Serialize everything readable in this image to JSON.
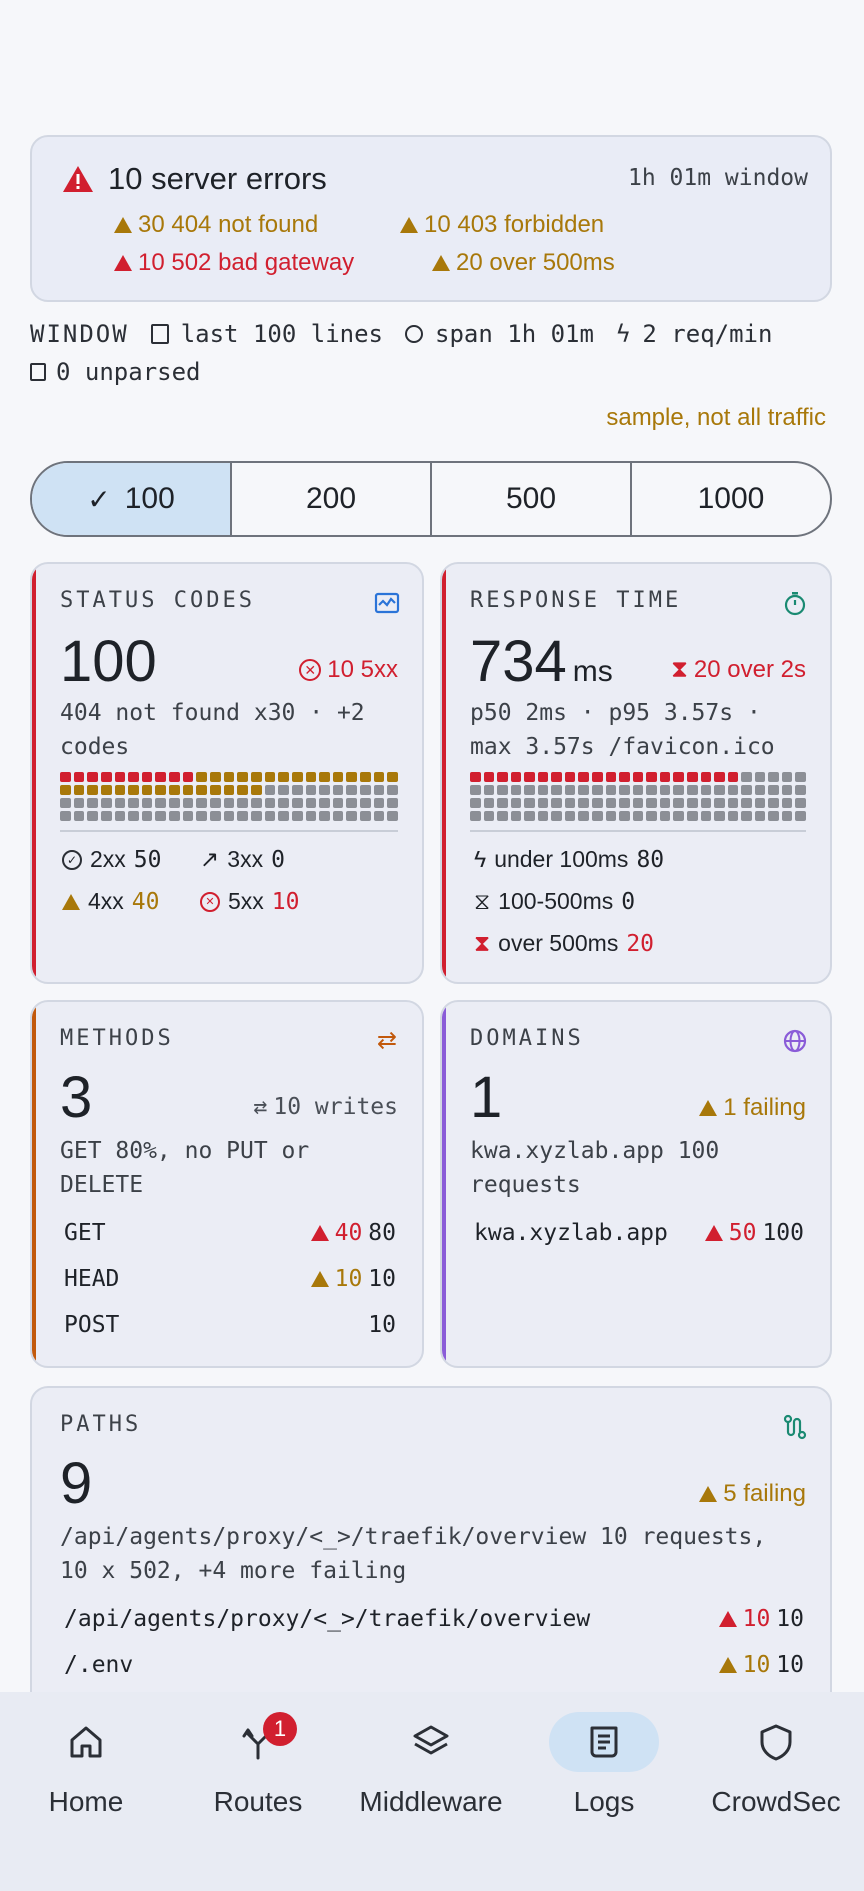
{
  "alert": {
    "title": "10 server errors",
    "window": "1h 01m window",
    "items": [
      {
        "text": "30 404 not found",
        "color": "#a8780a"
      },
      {
        "text": "10 403 forbidden",
        "color": "#a8780a"
      },
      {
        "text": "10 502 bad gateway",
        "color": "#d11f2f"
      },
      {
        "text": "20 over 500ms",
        "color": "#a8780a"
      }
    ]
  },
  "window_info": {
    "label": "WINDOW",
    "lines": "last 100 lines",
    "span": "span 1h 01m",
    "rate": "2 req/min",
    "unparsed": "0 unparsed",
    "sample_note": "sample, not all traffic"
  },
  "segments": {
    "options": [
      "100",
      "200",
      "500",
      "1000"
    ],
    "selected": "100"
  },
  "status_codes": {
    "label": "STATUS CODES",
    "value": "100",
    "badge": "10 5xx",
    "desc": "404 not found x30 · +2 codes",
    "grid": {
      "red": 10,
      "amber": 30,
      "gray": 60
    },
    "stats": [
      {
        "label": "2xx",
        "value": "50"
      },
      {
        "label": "3xx",
        "value": "0"
      },
      {
        "label": "4xx",
        "value": "40"
      },
      {
        "label": "5xx",
        "value": "10"
      }
    ]
  },
  "response_time": {
    "label": "RESPONSE TIME",
    "value": "734",
    "unit": "ms",
    "badge": "20 over 2s",
    "desc": "p50 2ms · p95 3.57s · max 3.57s /favicon.ico",
    "grid": {
      "red": 20,
      "gray": 80
    },
    "stats": [
      {
        "label": "under 100ms",
        "value": "80"
      },
      {
        "label": "100-500ms",
        "value": "0"
      },
      {
        "label": "over 500ms",
        "value": "20"
      }
    ]
  },
  "methods": {
    "label": "METHODS",
    "value": "3",
    "badge": "10 writes",
    "desc": "GET 80%, no PUT or DELETE",
    "rows": [
      {
        "name": "GET",
        "fail": "40",
        "count": "80"
      },
      {
        "name": "HEAD",
        "fail": "10",
        "count": "10"
      },
      {
        "name": "POST",
        "fail": "",
        "count": "10"
      }
    ]
  },
  "domains": {
    "label": "DOMAINS",
    "value": "1",
    "badge": "1 failing",
    "desc": "kwa.xyzlab.app 100 requests",
    "rows": [
      {
        "name": "kwa.xyzlab.app",
        "fail": "50",
        "count": "100"
      }
    ]
  },
  "paths": {
    "label": "PATHS",
    "value": "9",
    "badge": "5 failing",
    "desc": "/api/agents/proxy/<_>/traefik/overview 10 requests, 10 x 502, +4 more failing",
    "rows": [
      {
        "name": "/api/agents/proxy/<_>/traefik/overview",
        "fail": "10",
        "count": "10"
      },
      {
        "name": "/.env",
        "fail": "10",
        "count": "10"
      }
    ]
  },
  "nav": {
    "items": [
      {
        "label": "Home"
      },
      {
        "label": "Routes",
        "badge": "1"
      },
      {
        "label": "Middleware"
      },
      {
        "label": "Logs"
      },
      {
        "label": "CrowdSec"
      }
    ],
    "active": "Logs"
  }
}
